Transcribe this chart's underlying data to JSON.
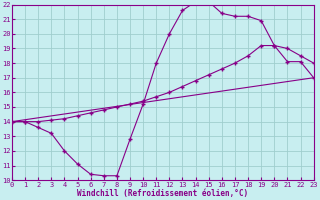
{
  "xlabel": "Windchill (Refroidissement éolien,°C)",
  "bg_color": "#c8eef0",
  "grid_color": "#a0cece",
  "line_color": "#880088",
  "marker": "+",
  "xlim": [
    0,
    23
  ],
  "ylim": [
    10,
    22
  ],
  "xticks": [
    0,
    1,
    2,
    3,
    4,
    5,
    6,
    7,
    8,
    9,
    10,
    11,
    12,
    13,
    14,
    15,
    16,
    17,
    18,
    19,
    20,
    21,
    22,
    23
  ],
  "yticks": [
    10,
    11,
    12,
    13,
    14,
    15,
    16,
    17,
    18,
    19,
    20,
    21,
    22
  ],
  "line1_x": [
    0,
    1,
    2,
    3,
    4,
    5,
    6,
    7,
    8,
    9,
    10,
    11,
    12,
    13,
    14,
    15,
    16,
    17,
    18,
    19,
    20,
    21,
    22,
    23
  ],
  "line1_y": [
    14.0,
    14.0,
    13.6,
    13.2,
    12.0,
    11.1,
    10.4,
    10.3,
    10.3,
    12.8,
    15.2,
    18.0,
    20.0,
    21.6,
    22.2,
    22.2,
    21.4,
    21.2,
    21.2,
    20.9,
    19.2,
    18.1,
    18.1,
    17.0
  ],
  "line2_x": [
    0,
    1,
    2,
    3,
    4,
    5,
    6,
    7,
    8,
    9,
    10,
    11,
    12,
    13,
    14,
    15,
    16,
    17,
    18,
    19,
    20,
    21,
    22,
    23
  ],
  "line2_y": [
    14.0,
    14.0,
    14.0,
    14.1,
    14.2,
    14.4,
    14.6,
    14.8,
    15.0,
    15.2,
    15.4,
    15.7,
    16.0,
    16.4,
    16.8,
    17.2,
    17.6,
    18.0,
    18.5,
    19.2,
    19.2,
    19.0,
    18.5,
    18.0
  ],
  "line3_x": [
    0,
    23
  ],
  "line3_y": [
    14.0,
    17.0
  ]
}
